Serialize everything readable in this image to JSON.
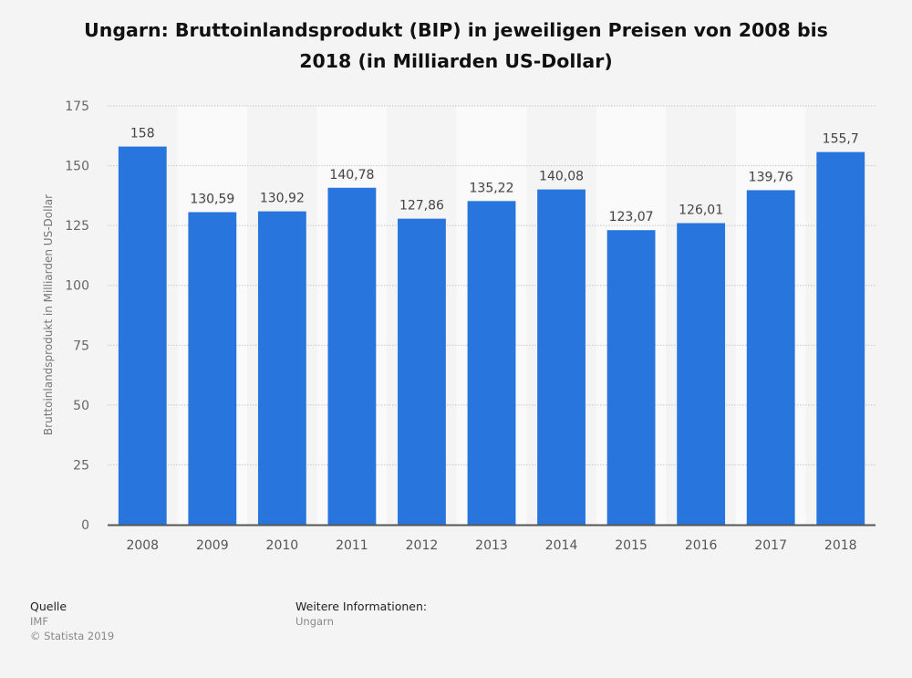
{
  "chart_data": {
    "type": "bar",
    "title": "Ungarn: Bruttoinlandsprodukt (BIP) in jeweiligen Preisen von 2008 bis 2018 (in Milliarden US-Dollar)",
    "title_lines": [
      "Ungarn: Bruttoinlandsprodukt (BIP) in jeweiligen Preisen von 2008 bis",
      "2018 (in Milliarden US-Dollar)"
    ],
    "xlabel": "",
    "ylabel": "Bruttoinlandsprodukt in Milliarden US-Dollar",
    "categories": [
      "2008",
      "2009",
      "2010",
      "2011",
      "2012",
      "2013",
      "2014",
      "2015",
      "2016",
      "2017",
      "2018"
    ],
    "values": [
      158,
      130.59,
      130.92,
      140.78,
      127.86,
      135.22,
      140.08,
      123.07,
      126.01,
      139.76,
      155.7
    ],
    "data_labels": [
      "158",
      "130,59",
      "130,92",
      "140,78",
      "127,86",
      "135,22",
      "140,08",
      "123,07",
      "126,01",
      "139,76",
      "155,7"
    ],
    "ylim": [
      0,
      175
    ],
    "yticks": [
      0,
      25,
      50,
      75,
      100,
      125,
      150,
      175
    ],
    "ytick_labels": [
      "0",
      "25",
      "50",
      "75",
      "100",
      "125",
      "150",
      "175"
    ],
    "grid": true,
    "legend": "none",
    "bar_color": "#2876dd"
  },
  "footer": {
    "source_heading": "Quelle",
    "source": "IMF",
    "copyright": "© Statista 2019",
    "info_heading": "Weitere Informationen:",
    "info": "Ungarn"
  }
}
